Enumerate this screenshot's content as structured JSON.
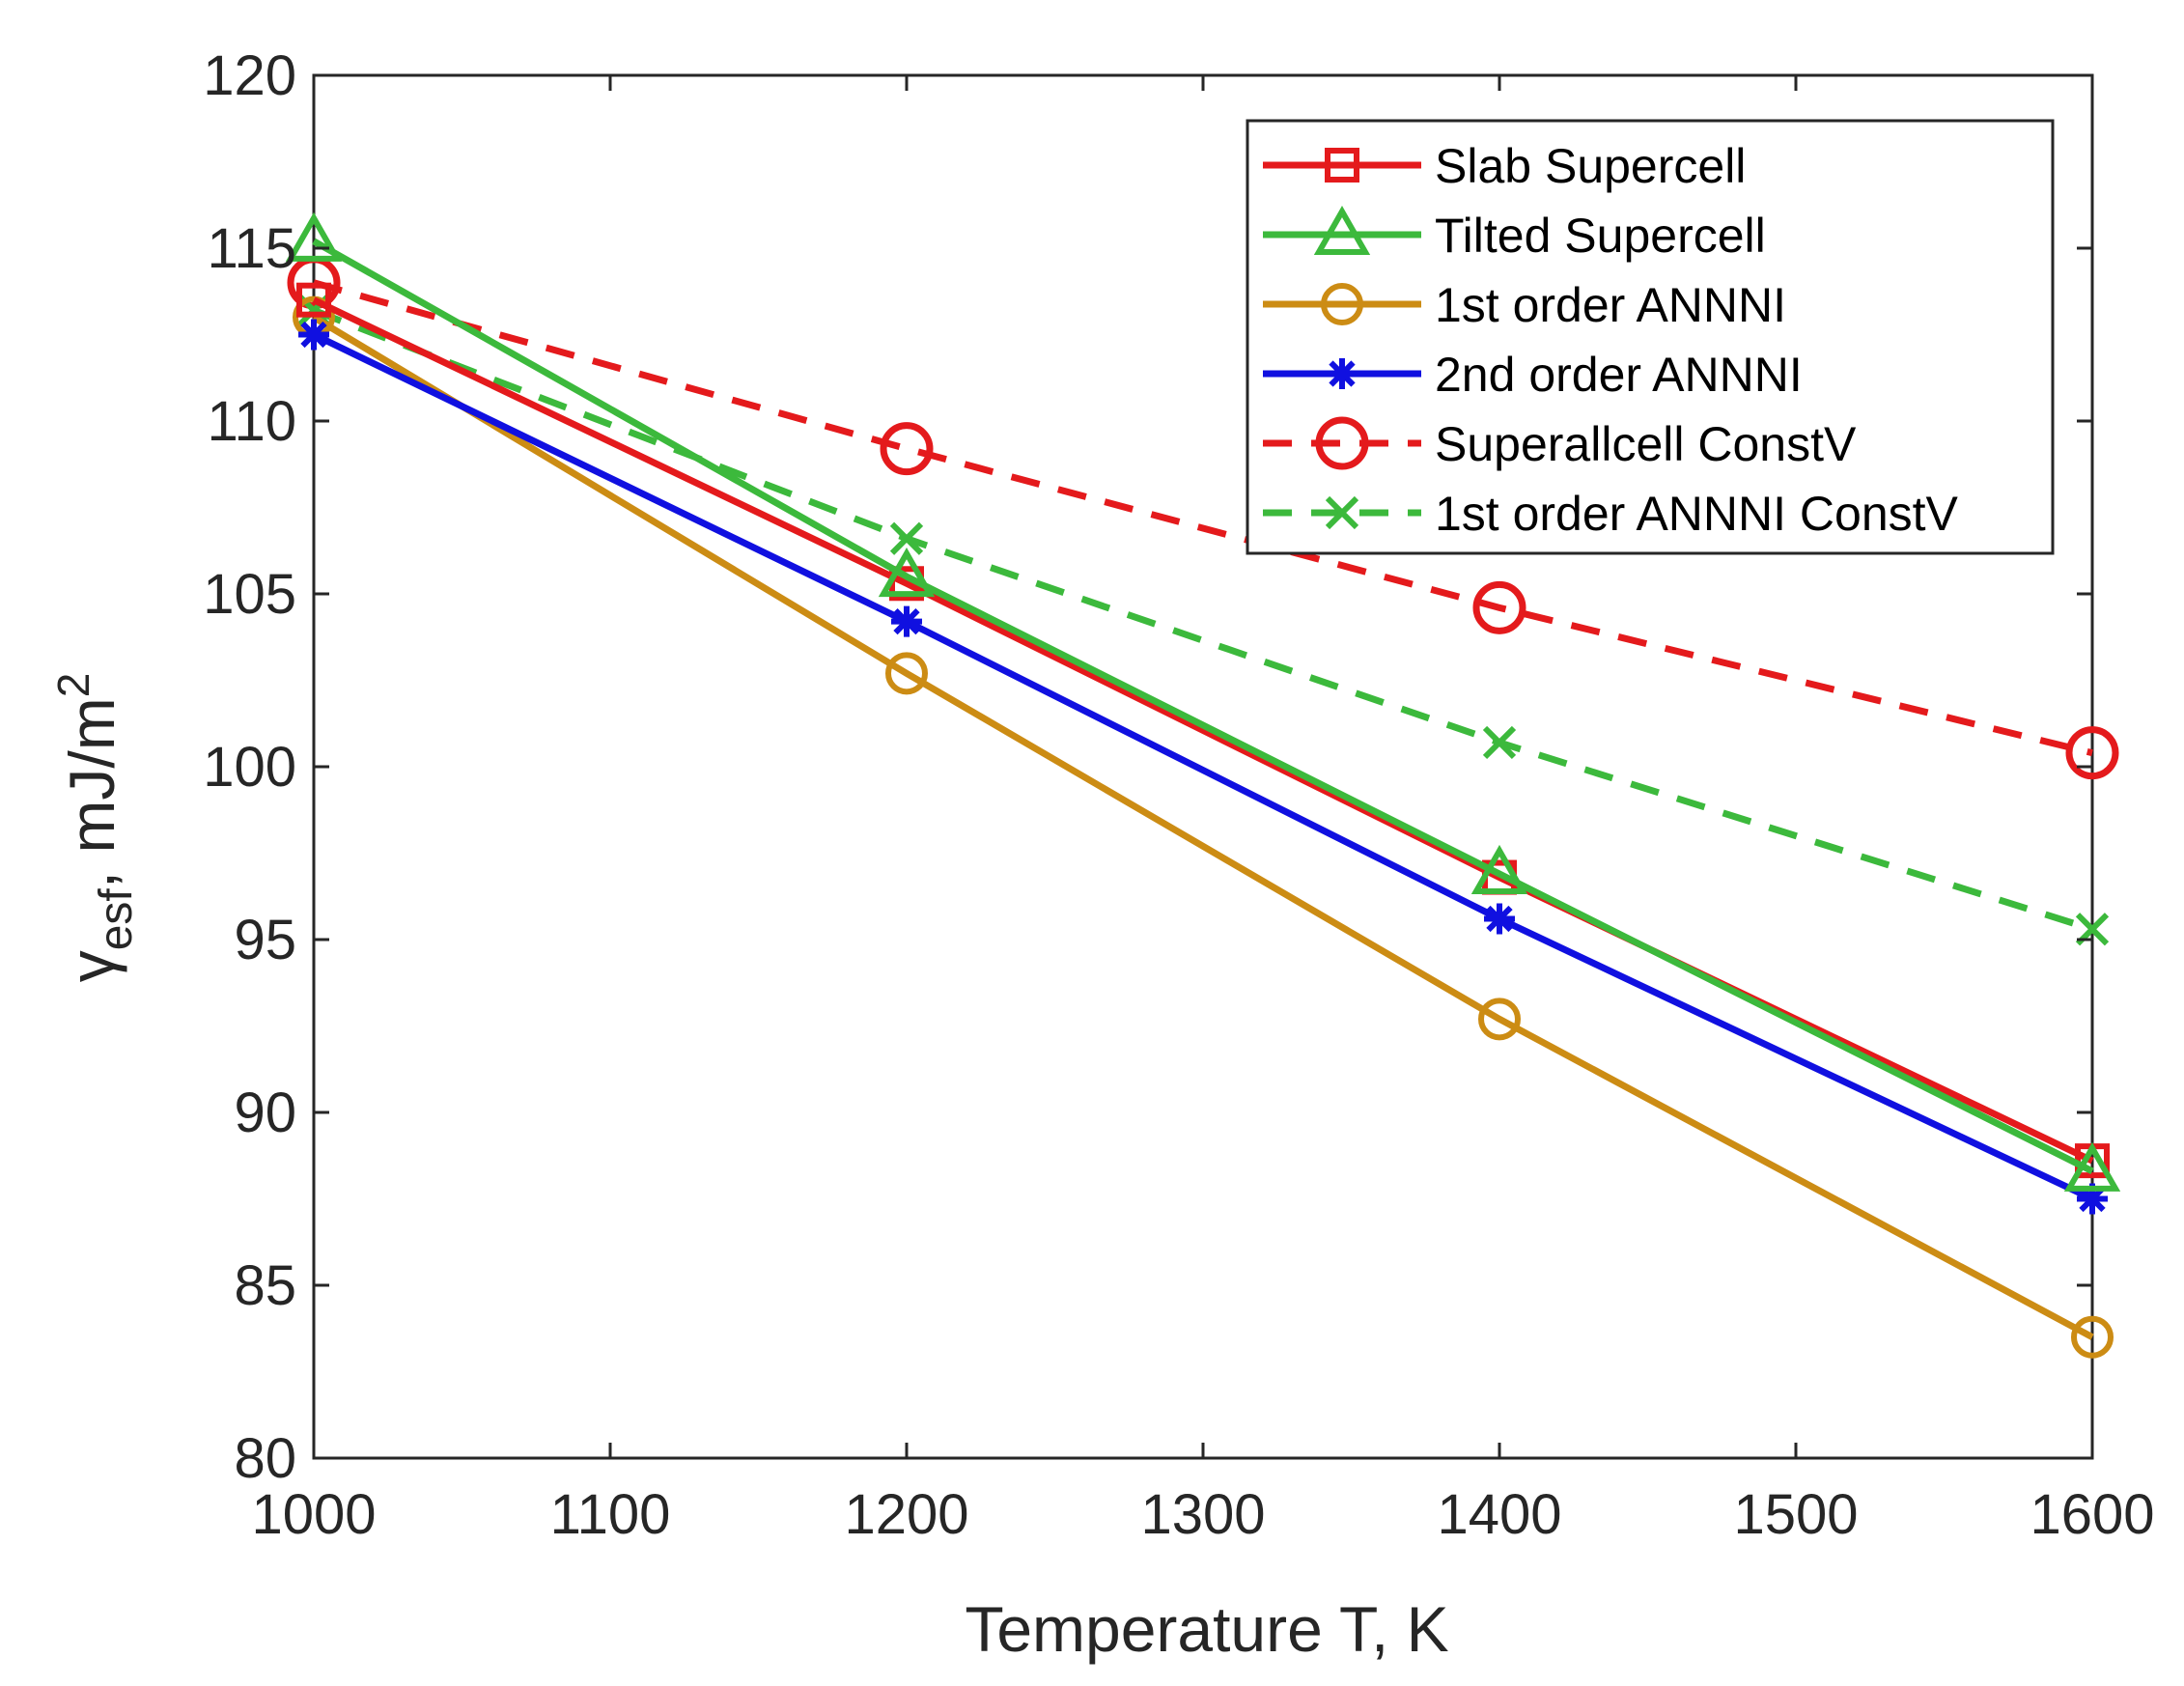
{
  "chart_data": {
    "type": "line",
    "title": "",
    "xlabel": "Temperature T, K",
    "ylabel": {
      "symbol": "γ",
      "subscript": "esf",
      "rest": ", mJ/m",
      "superscript": "2"
    },
    "xlim": [
      1000,
      1600
    ],
    "ylim": [
      80,
      120
    ],
    "xticks": [
      1000,
      1100,
      1200,
      1300,
      1400,
      1500,
      1600
    ],
    "yticks": [
      80,
      85,
      90,
      95,
      100,
      105,
      110,
      115,
      120
    ],
    "grid": false,
    "legend_position": "top-right",
    "x": [
      1000,
      1200,
      1400,
      1600
    ],
    "series": [
      {
        "name": "Slab Supercell",
        "color": "#e41a1c",
        "line": "solid",
        "marker": "square",
        "values": [
          113.5,
          105.3,
          96.8,
          88.6
        ]
      },
      {
        "name": "Tilted Supercell",
        "color": "#3cb93c",
        "line": "solid",
        "marker": "triangle",
        "values": [
          115.2,
          105.5,
          96.9,
          88.3
        ]
      },
      {
        "name": "1st order ANNNI",
        "color": "#cc8c14",
        "line": "solid",
        "marker": "circle",
        "values": [
          113.0,
          102.7,
          92.7,
          83.5
        ]
      },
      {
        "name": "2nd order ANNNI",
        "color": "#1010e0",
        "line": "solid",
        "marker": "asterisk",
        "values": [
          112.5,
          104.2,
          95.6,
          87.5
        ]
      },
      {
        "name": "Superallcell ConstV",
        "color": "#e41a1c",
        "line": "dashed",
        "marker": "circle-large",
        "values": [
          114.0,
          109.2,
          104.6,
          100.4
        ]
      },
      {
        "name": "1st order ANNNI ConstV",
        "color": "#3cb93c",
        "line": "dashed",
        "marker": "x",
        "values": [
          113.2,
          106.6,
          100.7,
          95.3
        ]
      }
    ]
  }
}
